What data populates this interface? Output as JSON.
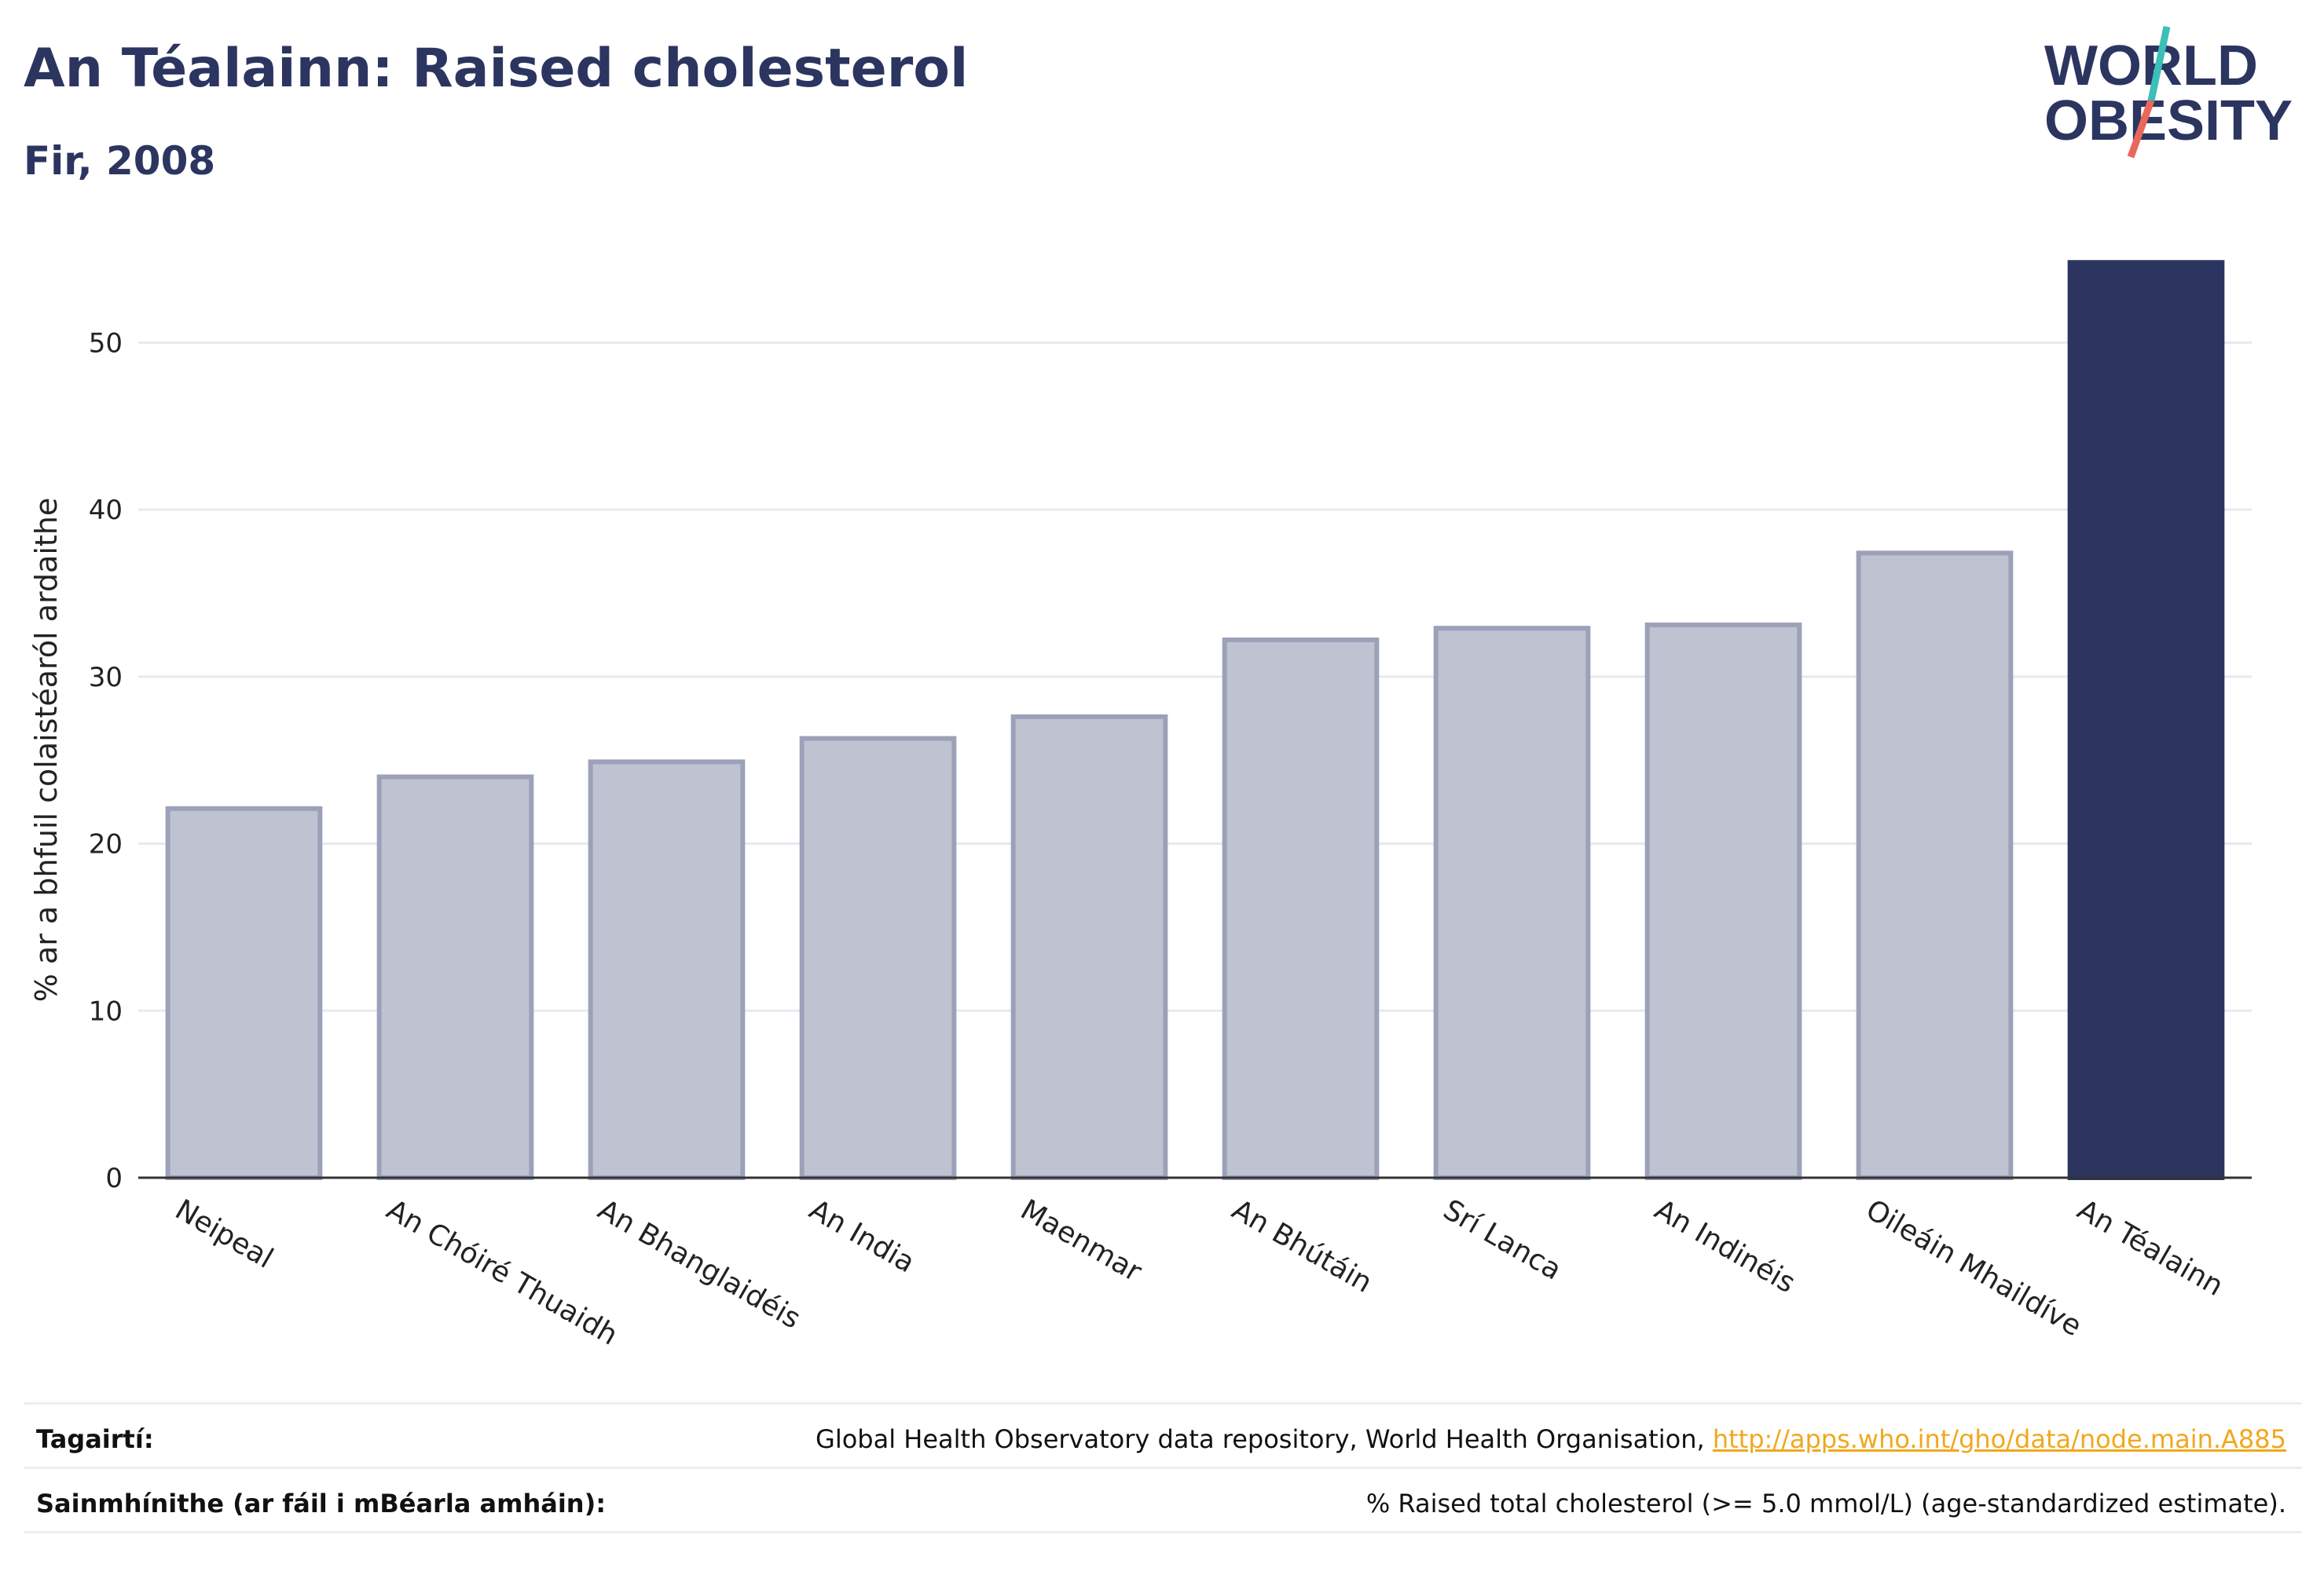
{
  "header": {
    "title": "An Téalainn: Raised cholesterol",
    "subtitle": "Fir, 2008"
  },
  "logo": {
    "line1": "WORLD",
    "line2": "OBESITY",
    "colors": {
      "text": "#2b3560",
      "slash_teal": "#3bbfb8",
      "slash_red": "#e8685a"
    }
  },
  "chart_data": {
    "type": "bar",
    "categories": [
      "Neipeal",
      "An Chóiré Thuaidh",
      "An Bhanglaidéis",
      "An India",
      "Maenmar",
      "An Bhútáin",
      "Srí Lanca",
      "An Indinéis",
      "Oileáin Mhaildíve",
      "An Téalainn"
    ],
    "values": [
      22.1,
      24.0,
      24.9,
      26.3,
      27.6,
      32.2,
      32.9,
      33.1,
      37.4,
      54.8
    ],
    "highlight_index": 9,
    "ylabel": "% ar a bhfuil colaistéaról ardaithe",
    "xlabel": "",
    "ylim": [
      0,
      55
    ],
    "yticks": [
      0,
      10,
      20,
      30,
      40,
      50
    ],
    "grid": true,
    "colors": {
      "bar": "#bfc2d0",
      "bar_border": "#9ca1b9",
      "highlight": "#2b3560",
      "grid": "#e8e9ef",
      "axis": "#333333"
    }
  },
  "footer": {
    "references_label": "Tagairtí:",
    "references_text": "Global Health Observatory data repository, World Health Organisation, ",
    "references_link": "http://apps.who.int/gho/data/node.main.A885",
    "definitions_label": "Sainmhínithe (ar fáil i mBéarla amháin):",
    "definitions_text": "% Raised total cholesterol (>= 5.0 mmol/L) (age-standardized estimate)."
  }
}
